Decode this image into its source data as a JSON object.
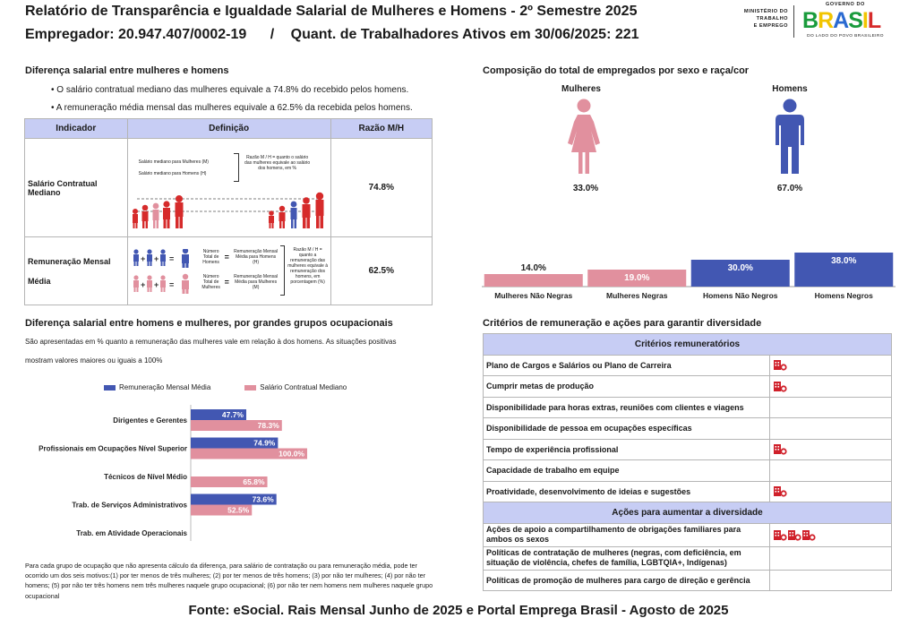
{
  "header": {
    "title": "Relatório de Transparência e Igualdade Salarial de Mulheres e Homens - 2º Semestre 2025",
    "employer_label": "Empregador: 20.947.407/0002-19",
    "separator": "/",
    "workers_label": "Quant. de Trabalhadores Ativos em 30/06/2025: 221",
    "ministry_lines": [
      "MINISTÉRIO DO",
      "TRABALHO",
      "E EMPREGO"
    ],
    "gov_top": "GOVERNO DO",
    "gov_brand": "BRASIL",
    "gov_tagline": "DO LADO DO POVO BRASILEIRO"
  },
  "salary_gap": {
    "heading": "Diferença salarial entre mulheres e homens",
    "bullets": [
      "• O salário contratual mediano das mulheres equivale a 74.8% do recebido pelos homens.",
      "• A remuneração média mensal das mulheres equivale a 62.5% da recebida pelos homens."
    ],
    "table_headers": [
      "Indicador",
      "Definição",
      "Razão M/H"
    ],
    "rows": [
      {
        "indicator": "Salário Contratual Mediano",
        "ratio": "74.8%",
        "def_women": "Salário mediano para Mulheres (M)",
        "def_men": "Salário mediano para Homens (H)",
        "def_ratio": "Razão M / H = quanto o salário das mulheres equivale ao salário dos homens, em %"
      },
      {
        "indicator_line1": "Remuneração Mensal",
        "indicator_line2": "Média",
        "ratio": "62.5%",
        "def_men_count": "Número Total de Homens",
        "def_men_avg": "Remuneração Mensal Média para Homens (H)",
        "def_women_count": "Número Total de Mulheres",
        "def_women_avg": "Remuneração Mensal Média para Mulheres (M)",
        "def_ratio": "Razão M / H = quanto a remuneração das mulheres equivale à remuneração dos homens, em porcentagem (%)"
      }
    ]
  },
  "composition": {
    "heading": "Composição do total de empregados por sexo e raça/cor",
    "women_label": "Mulheres",
    "men_label": "Homens",
    "women_pct": "33.0%",
    "men_pct": "67.0%"
  },
  "chart_data": [
    {
      "type": "bar",
      "title": "Composição do total de empregados por sexo e raça/cor",
      "categories": [
        "Mulheres Não Negras",
        "Mulheres Negras",
        "Homens Não Negros",
        "Homens Negros"
      ],
      "values": [
        14.0,
        19.0,
        30.0,
        38.0
      ],
      "value_labels": [
        "14.0%",
        "19.0%",
        "30.0%",
        "38.0%"
      ],
      "colors": [
        "#e1909e",
        "#e1909e",
        "#4257b2",
        "#4257b2"
      ]
    },
    {
      "type": "bar",
      "orientation": "horizontal",
      "title": "Diferença salarial entre homens e mulheres, por grandes grupos ocupacionais",
      "categories": [
        "Dirigentes e Gerentes",
        "Profissionais em Ocupações Nível Superior",
        "Técnicos de Nível Médio",
        "Trab. de Serviços Administrativos",
        "Trab. em Atividade Operacionais"
      ],
      "series": [
        {
          "name": "Remuneração Mensal Média",
          "color": "#4257b2",
          "values": [
            47.7,
            74.9,
            null,
            73.6,
            null
          ]
        },
        {
          "name": "Salário Contratual Mediano",
          "color": "#e1909e",
          "values": [
            78.3,
            100.0,
            65.8,
            52.5,
            null
          ]
        }
      ],
      "xlim": [
        0,
        100
      ]
    }
  ],
  "occupational": {
    "heading": "Diferença salarial entre homens e mulheres, por grandes grupos ocupacionais",
    "intro_line1": "São apresentadas em % quanto a remuneração das mulheres vale em relação à dos homens. As situações positivas",
    "intro_line2": "mostram valores maiores ou iguais a 100%",
    "note": "Para cada grupo de ocupação que não apresenta cálculo da diferença, para salário de contratação ou para remuneração média, pode ter ocorrido um dos seis motivos:(1) por ter menos de três mulheres; (2) por ter menos de três homens; (3) por não ter mulheres; (4) por não ter homens; (5) por não ter três homens nem três mulheres naquele grupo ocupacional; (6) por não ter nem homens nem mulheres naquele grupo ocupacional"
  },
  "criteria": {
    "heading": "Critérios de remuneração e ações para garantir diversidade",
    "remuneration_header": "Critérios remuneratórios",
    "remuneration_items": [
      {
        "label": "Plano de Cargos e Salários ou Plano de Carreira",
        "icons": 1
      },
      {
        "label": "Cumprir metas de produção",
        "icons": 1
      },
      {
        "label": "Disponibilidade para horas extras, reuniões com clientes e viagens",
        "icons": 0
      },
      {
        "label": "Disponibilidade de pessoa em ocupações específicas",
        "icons": 0
      },
      {
        "label": "Tempo de experiência profissional",
        "icons": 1
      },
      {
        "label": "Capacidade de trabalho em equipe",
        "icons": 0
      },
      {
        "label": "Proatividade, desenvolvimento de ideias e sugestões",
        "icons": 1
      }
    ],
    "diversity_header": "Ações para aumentar a diversidade",
    "diversity_items": [
      {
        "label": "Ações de apoio a compartilhamento de obrigações familiares para ambos os sexos",
        "icons": 3
      },
      {
        "label": "Políticas de contratação de mulheres (negras, com deficiência, em situação de violência, chefes de família, LGBTQIA+, Indígenas)",
        "icons": 0
      },
      {
        "label": "Políticas de promoção de mulheres para cargo de direção e gerência",
        "icons": 0
      }
    ],
    "icon_name": "building-check-icon",
    "icon_color": "#d0202a"
  },
  "footer": "Fonte: eSocial. Rais Mensal Junho de 2025 e Portal Emprega Brasil - Agosto de 2025"
}
